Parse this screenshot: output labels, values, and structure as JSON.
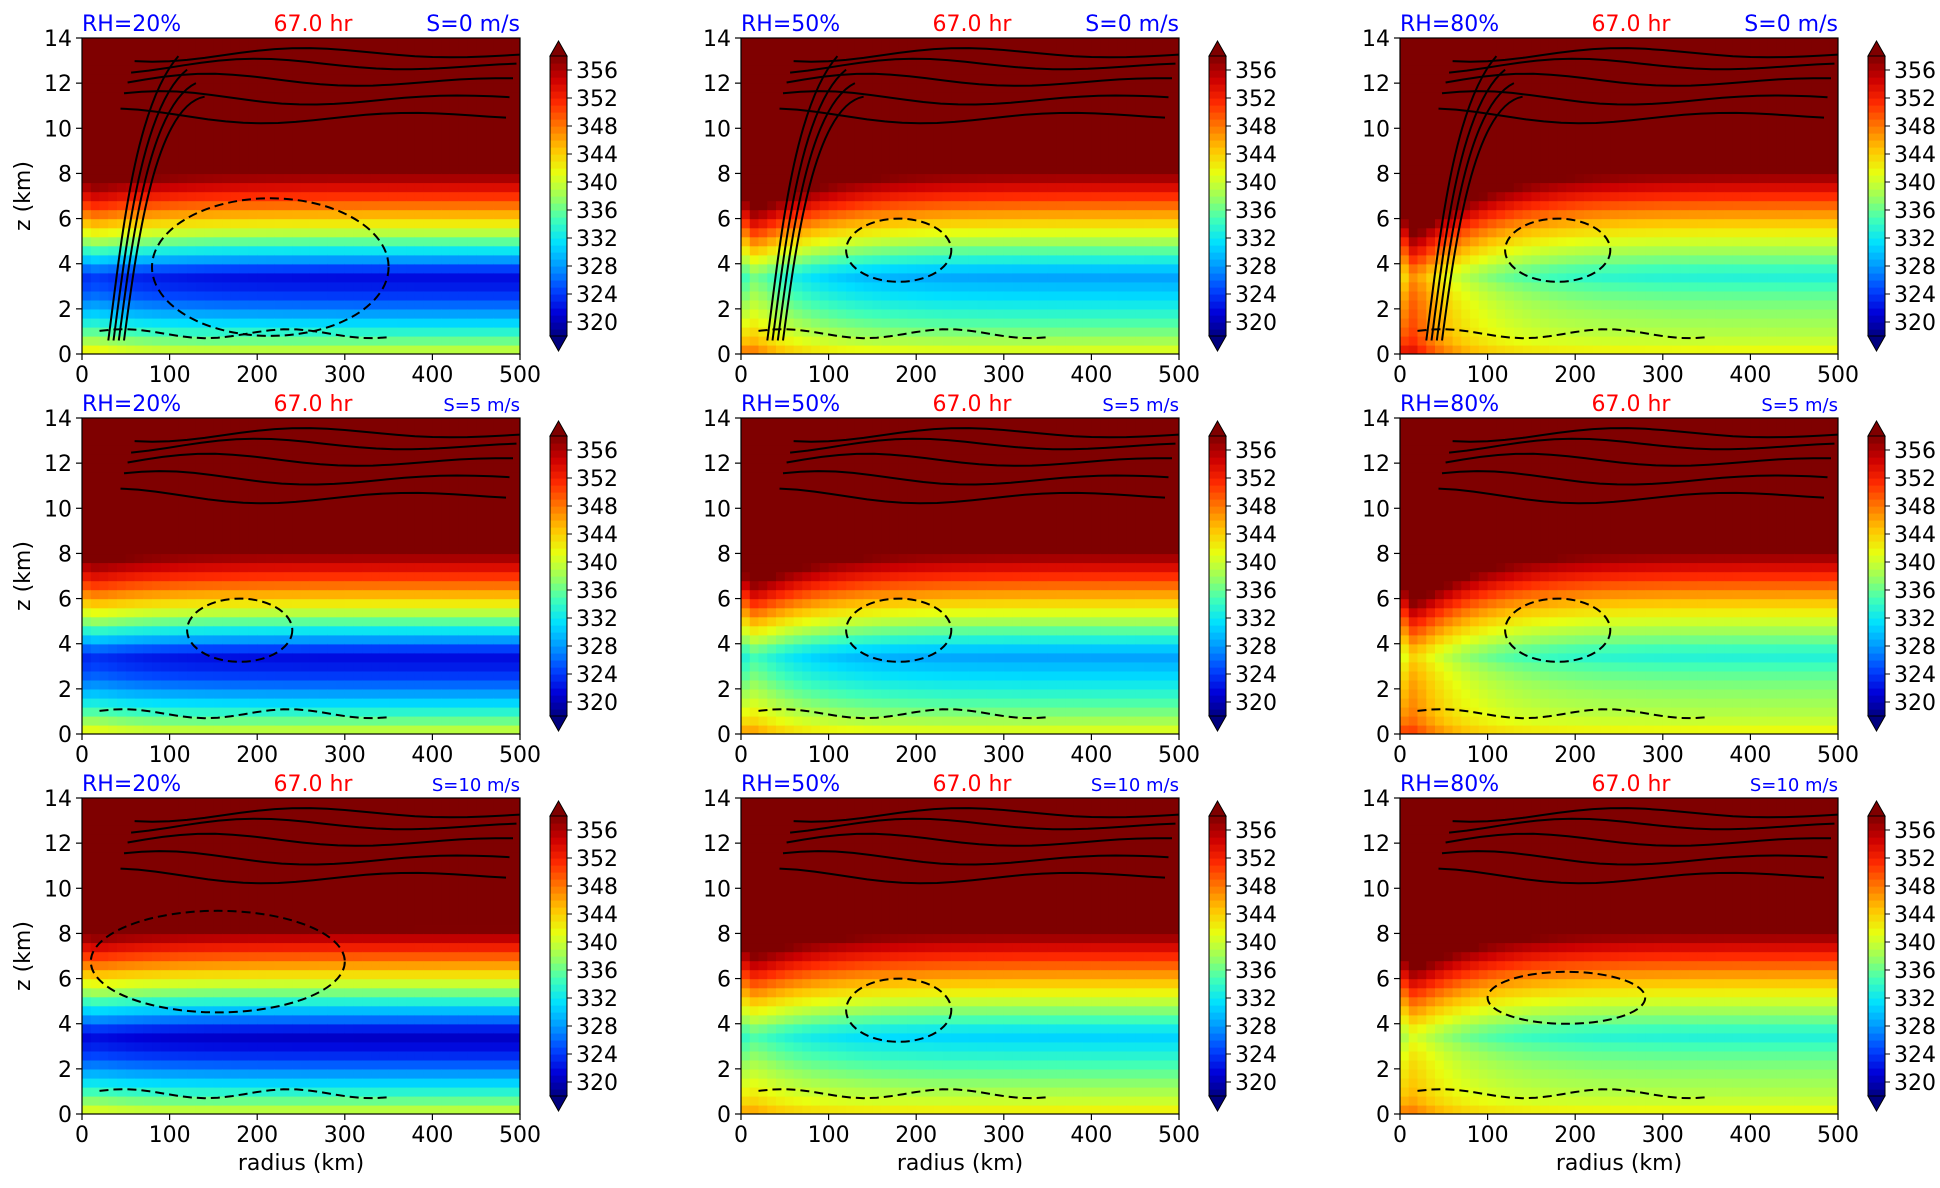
{
  "figure": {
    "colorbar": {
      "ticks": [
        320,
        324,
        328,
        332,
        336,
        340,
        344,
        348,
        352,
        356
      ],
      "vmin": 318,
      "vmax": 358,
      "extend": "both",
      "palette": [
        "#00007f",
        "#0000d9",
        "#0044ff",
        "#0099ff",
        "#00e0ff",
        "#3fffb8",
        "#9dff5a",
        "#e8ff10",
        "#ffc400",
        "#ff7800",
        "#ff2a00",
        "#cc0000",
        "#7f0000"
      ]
    },
    "text_colors": {
      "rh": "#0000ff",
      "time": "#ff0000",
      "shear": "#0000ff"
    }
  },
  "chart_data": [
    {
      "type": "heatmap",
      "rh": "RH=20%",
      "time": "67.0 hr",
      "shear": "S=0 m/s",
      "rh_value": 20,
      "shear_value": 0,
      "xlabel": "",
      "ylabel": "z (km)",
      "xlim": [
        0,
        500
      ],
      "ylim": [
        0,
        14
      ],
      "xticks": [
        "0",
        "100",
        "200",
        "300",
        "400",
        "500"
      ],
      "yticks": [
        "0",
        "2",
        "4",
        "6",
        "8",
        "10",
        "12",
        "14"
      ]
    },
    {
      "type": "heatmap",
      "rh": "RH=50%",
      "time": "67.0 hr",
      "shear": "S=0 m/s",
      "rh_value": 50,
      "shear_value": 0,
      "xlabel": "",
      "ylabel": "",
      "xlim": [
        0,
        500
      ],
      "ylim": [
        0,
        14
      ],
      "xticks": [
        "0",
        "100",
        "200",
        "300",
        "400",
        "500"
      ],
      "yticks": [
        "0",
        "2",
        "4",
        "6",
        "8",
        "10",
        "12",
        "14"
      ]
    },
    {
      "type": "heatmap",
      "rh": "RH=80%",
      "time": "67.0 hr",
      "shear": "S=0 m/s",
      "rh_value": 80,
      "shear_value": 0,
      "xlabel": "",
      "ylabel": "",
      "xlim": [
        0,
        500
      ],
      "ylim": [
        0,
        14
      ],
      "xticks": [
        "0",
        "100",
        "200",
        "300",
        "400",
        "500"
      ],
      "yticks": [
        "0",
        "2",
        "4",
        "6",
        "8",
        "10",
        "12",
        "14"
      ]
    },
    {
      "type": "heatmap",
      "rh": "RH=20%",
      "time": "67.0 hr",
      "shear": "S=5 m/s",
      "rh_value": 20,
      "shear_value": 5,
      "xlabel": "",
      "ylabel": "z (km)",
      "xlim": [
        0,
        500
      ],
      "ylim": [
        0,
        14
      ],
      "xticks": [
        "0",
        "100",
        "200",
        "300",
        "400",
        "500"
      ],
      "yticks": [
        "0",
        "2",
        "4",
        "6",
        "8",
        "10",
        "12",
        "14"
      ]
    },
    {
      "type": "heatmap",
      "rh": "RH=50%",
      "time": "67.0 hr",
      "shear": "S=5 m/s",
      "rh_value": 50,
      "shear_value": 5,
      "xlabel": "",
      "ylabel": "",
      "xlim": [
        0,
        500
      ],
      "ylim": [
        0,
        14
      ],
      "xticks": [
        "0",
        "100",
        "200",
        "300",
        "400",
        "500"
      ],
      "yticks": [
        "0",
        "2",
        "4",
        "6",
        "8",
        "10",
        "12",
        "14"
      ]
    },
    {
      "type": "heatmap",
      "rh": "RH=80%",
      "time": "67.0 hr",
      "shear": "S=5 m/s",
      "rh_value": 80,
      "shear_value": 5,
      "xlabel": "",
      "ylabel": "",
      "xlim": [
        0,
        500
      ],
      "ylim": [
        0,
        14
      ],
      "xticks": [
        "0",
        "100",
        "200",
        "300",
        "400",
        "500"
      ],
      "yticks": [
        "0",
        "2",
        "4",
        "6",
        "8",
        "10",
        "12",
        "14"
      ]
    },
    {
      "type": "heatmap",
      "rh": "RH=20%",
      "time": "67.0 hr",
      "shear": "S=10 m/s",
      "rh_value": 20,
      "shear_value": 10,
      "xlabel": "radius (km)",
      "ylabel": "z (km)",
      "xlim": [
        0,
        500
      ],
      "ylim": [
        0,
        14
      ],
      "xticks": [
        "0",
        "100",
        "200",
        "300",
        "400",
        "500"
      ],
      "yticks": [
        "0",
        "2",
        "4",
        "6",
        "8",
        "10",
        "12",
        "14"
      ]
    },
    {
      "type": "heatmap",
      "rh": "RH=50%",
      "time": "67.0 hr",
      "shear": "S=10 m/s",
      "rh_value": 50,
      "shear_value": 10,
      "xlabel": "radius (km)",
      "ylabel": "",
      "xlim": [
        0,
        500
      ],
      "ylim": [
        0,
        14
      ],
      "xticks": [
        "0",
        "100",
        "200",
        "300",
        "400",
        "500"
      ],
      "yticks": [
        "0",
        "2",
        "4",
        "6",
        "8",
        "10",
        "12",
        "14"
      ]
    },
    {
      "type": "heatmap",
      "rh": "RH=80%",
      "time": "67.0 hr",
      "shear": "S=10 m/s",
      "rh_value": 80,
      "shear_value": 10,
      "xlabel": "radius (km)",
      "ylabel": "",
      "xlim": [
        0,
        500
      ],
      "ylim": [
        0,
        14
      ],
      "xticks": [
        "0",
        "100",
        "200",
        "300",
        "400",
        "500"
      ],
      "yticks": [
        "0",
        "2",
        "4",
        "6",
        "8",
        "10",
        "12",
        "14"
      ]
    }
  ]
}
